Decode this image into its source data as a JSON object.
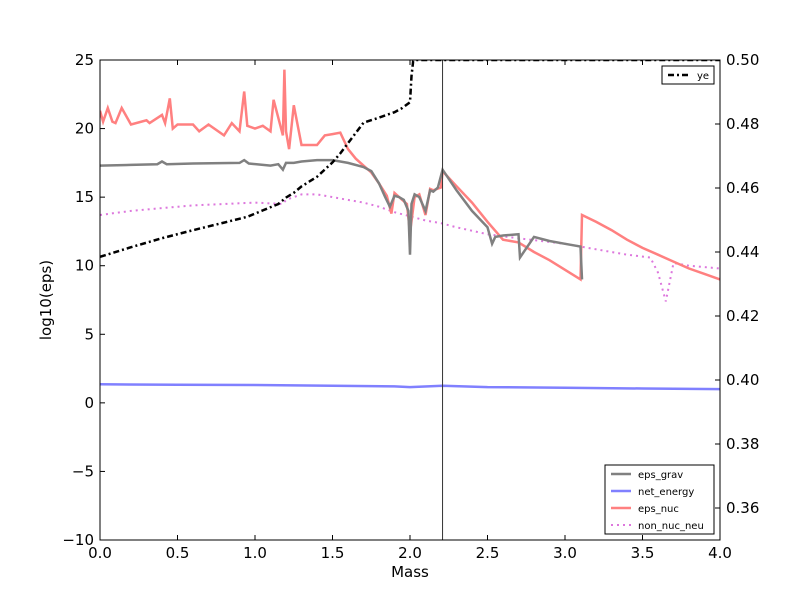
{
  "chart_data": {
    "type": "line",
    "xlabel": "Mass",
    "ylabel": "log10(eps)",
    "xlim": [
      0,
      4
    ],
    "ylim": [
      -10,
      25
    ],
    "y2lim": [
      0.35,
      0.5
    ],
    "x_ticks": [
      "0.0",
      "0.5",
      "1.0",
      "1.5",
      "2.0",
      "2.5",
      "3.0",
      "3.5",
      "4.0"
    ],
    "y_ticks": [
      "−10",
      "−5",
      "0",
      "5",
      "10",
      "15",
      "20",
      "25"
    ],
    "y2_ticks": [
      "0.36",
      "0.38",
      "0.40",
      "0.42",
      "0.44",
      "0.46",
      "0.48",
      "0.50"
    ],
    "vline_x": 2.21,
    "grid": false,
    "legend_left": [
      "eps_grav",
      "net_energy",
      "eps_nuc",
      "non_nuc_neu"
    ],
    "legend_right": [
      "ye"
    ],
    "series": [
      {
        "name": "eps_grav",
        "color": "#808080",
        "x": [
          0.0,
          0.2,
          0.37,
          0.4,
          0.43,
          0.6,
          0.9,
          0.93,
          0.96,
          1.1,
          1.15,
          1.18,
          1.2,
          1.25,
          1.3,
          1.4,
          1.5,
          1.6,
          1.7,
          1.75,
          1.8,
          1.84,
          1.87,
          1.9,
          1.93,
          1.96,
          1.99,
          2.0,
          2.01,
          2.03,
          2.06,
          2.1,
          2.13,
          2.15,
          2.18,
          2.21,
          2.3,
          2.4,
          2.5,
          2.53,
          2.55,
          2.6,
          2.7,
          2.71,
          2.8,
          2.9,
          3.0,
          3.1,
          3.11
        ],
        "y": [
          17.3,
          17.35,
          17.4,
          17.6,
          17.4,
          17.45,
          17.5,
          17.7,
          17.45,
          17.3,
          17.4,
          17.0,
          17.5,
          17.5,
          17.6,
          17.7,
          17.7,
          17.5,
          17.2,
          16.9,
          16.0,
          15.0,
          14.3,
          15.1,
          15.0,
          14.8,
          14.0,
          10.8,
          14.5,
          15.2,
          15.0,
          14.0,
          15.5,
          15.4,
          15.7,
          17.0,
          15.5,
          14.0,
          12.8,
          11.6,
          12.1,
          12.2,
          12.3,
          10.6,
          12.1,
          11.8,
          11.6,
          11.4,
          9.0
        ]
      },
      {
        "name": "net_energy",
        "color": "#8080ff",
        "x": [
          0.0,
          0.5,
          1.0,
          1.5,
          1.9,
          2.0,
          2.21,
          2.5,
          3.0,
          3.5,
          4.0
        ],
        "y": [
          1.35,
          1.32,
          1.3,
          1.25,
          1.2,
          1.15,
          1.25,
          1.15,
          1.1,
          1.05,
          1.0
        ]
      },
      {
        "name": "eps_nuc",
        "color": "#ff8080",
        "x": [
          0.0,
          0.02,
          0.05,
          0.08,
          0.1,
          0.14,
          0.2,
          0.3,
          0.32,
          0.4,
          0.42,
          0.45,
          0.47,
          0.5,
          0.6,
          0.64,
          0.7,
          0.8,
          0.85,
          0.9,
          0.93,
          0.95,
          1.0,
          1.05,
          1.1,
          1.12,
          1.18,
          1.19,
          1.2,
          1.22,
          1.25,
          1.3,
          1.4,
          1.45,
          1.5,
          1.55,
          1.6,
          1.65,
          1.7,
          1.75,
          1.8,
          1.85,
          1.88,
          1.9,
          1.95,
          1.98,
          2.0,
          2.03,
          2.06,
          2.1,
          2.13,
          2.15,
          2.2,
          2.21,
          2.3,
          2.4,
          2.5,
          2.6,
          2.7,
          2.8,
          2.9,
          3.0,
          3.1,
          3.11,
          3.2,
          3.3,
          3.4,
          3.5,
          3.6,
          3.7,
          3.8,
          3.9,
          4.0
        ],
        "y": [
          21.3,
          20.5,
          21.5,
          20.5,
          20.4,
          21.5,
          20.3,
          20.6,
          20.4,
          21.0,
          20.4,
          22.2,
          20.0,
          20.3,
          20.3,
          19.8,
          20.3,
          19.5,
          20.4,
          19.8,
          22.7,
          20.2,
          20.0,
          20.2,
          19.8,
          22.1,
          19.5,
          24.3,
          19.8,
          18.5,
          21.7,
          18.8,
          18.8,
          19.5,
          19.6,
          19.7,
          18.5,
          17.8,
          17.3,
          16.8,
          16.0,
          15.1,
          13.8,
          15.3,
          14.8,
          14.5,
          12.4,
          15.0,
          15.2,
          13.7,
          15.6,
          15.5,
          15.7,
          16.9,
          15.8,
          14.6,
          13.2,
          11.9,
          11.7,
          11.0,
          10.4,
          9.7,
          9.0,
          13.7,
          13.2,
          12.6,
          11.9,
          11.3,
          10.8,
          10.3,
          9.8,
          9.4,
          9.0
        ]
      },
      {
        "name": "non_nuc_neu",
        "color": "#dd77dd",
        "x": [
          0.0,
          0.2,
          0.4,
          0.6,
          0.8,
          1.0,
          1.18,
          1.2,
          1.25,
          1.3,
          1.4,
          1.5,
          1.6,
          1.7,
          1.8,
          1.9,
          2.0,
          2.1,
          2.2,
          2.3,
          2.5,
          2.7,
          3.0,
          3.2,
          3.4,
          3.55,
          3.6,
          3.65,
          3.7,
          3.8,
          4.0
        ],
        "y": [
          13.7,
          14.0,
          14.2,
          14.4,
          14.5,
          14.6,
          14.5,
          14.8,
          15.0,
          15.2,
          15.2,
          15.0,
          14.8,
          14.6,
          14.3,
          13.9,
          13.6,
          13.3,
          13.1,
          12.8,
          12.3,
          12.0,
          11.6,
          11.2,
          10.8,
          10.6,
          9.5,
          7.4,
          10.2,
          10.0,
          9.8
        ]
      },
      {
        "name": "ye",
        "axis": "right",
        "color": "#000000",
        "x": [
          0.0,
          0.2,
          0.4,
          0.6,
          0.8,
          0.95,
          1.05,
          1.15,
          1.2,
          1.25,
          1.3,
          1.4,
          1.5,
          1.55,
          1.6,
          1.7,
          1.8,
          1.9,
          1.95,
          2.0,
          2.01,
          2.02,
          2.03,
          2.1,
          2.2,
          2.5,
          3.0,
          3.5,
          4.0
        ],
        "y": [
          0.4385,
          0.4415,
          0.4443,
          0.4468,
          0.4492,
          0.451,
          0.453,
          0.455,
          0.457,
          0.4585,
          0.4605,
          0.4635,
          0.468,
          0.4708,
          0.474,
          0.4804,
          0.482,
          0.4837,
          0.485,
          0.4868,
          0.495,
          0.4995,
          0.5,
          0.5,
          0.5,
          0.5,
          0.5,
          0.5,
          0.5
        ]
      }
    ]
  }
}
